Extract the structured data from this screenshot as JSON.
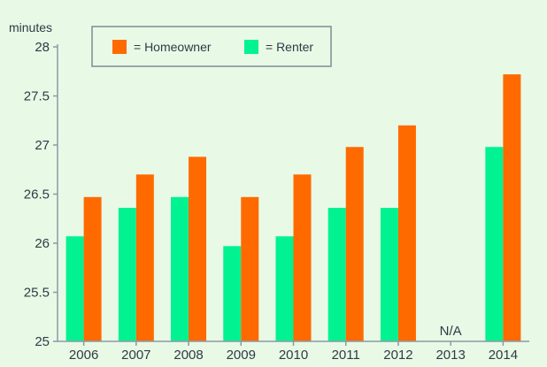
{
  "chart_data": {
    "type": "bar",
    "y_unit_label": "minutes",
    "categories": [
      "2006",
      "2007",
      "2008",
      "2009",
      "2010",
      "2011",
      "2012",
      "2013",
      "2014"
    ],
    "series": [
      {
        "name": "= Renter",
        "color": "#00f291",
        "values": [
          26.07,
          26.36,
          26.47,
          25.97,
          26.07,
          26.36,
          26.36,
          null,
          26.98
        ]
      },
      {
        "name": "= Homeowner",
        "color": "#ff6a00",
        "values": [
          26.47,
          26.7,
          26.88,
          26.47,
          26.7,
          26.98,
          27.2,
          null,
          27.72
        ]
      }
    ],
    "missing_label": "N/A",
    "missing_category": "2013",
    "ylim": [
      25,
      28
    ],
    "yticks": [
      "25",
      "25.5",
      "26",
      "26.5",
      "27",
      "27.5",
      "28"
    ],
    "grid": false,
    "legend_position": "top",
    "background_color": "#e8f9e6",
    "axis_color": "#8a9aa5"
  }
}
